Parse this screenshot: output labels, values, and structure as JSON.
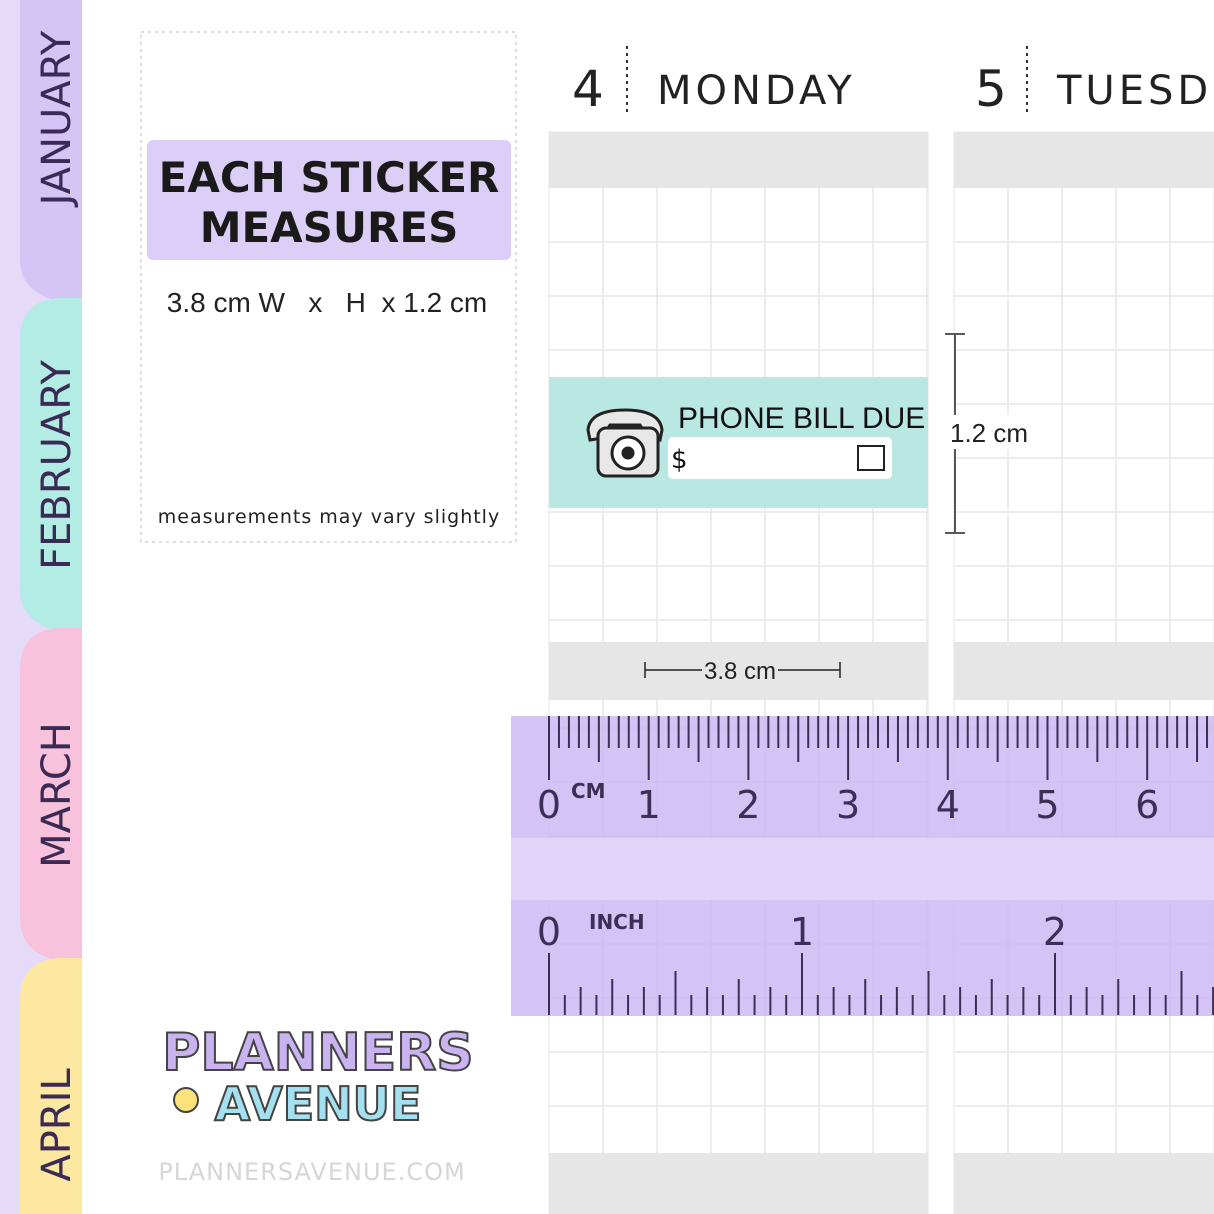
{
  "tabs": [
    "JANUARY",
    "FEBRUARY",
    "MARCH",
    "APRIL"
  ],
  "info": {
    "title_line1": "EACH STICKER",
    "title_line2": "MEASURES",
    "size": "3.8 cm W   x   H  x 1.2 cm",
    "note": "measurements may vary slightly"
  },
  "days": [
    {
      "number": "4",
      "name": "MONDAY"
    },
    {
      "number": "5",
      "name": "TUESD"
    }
  ],
  "sticker": {
    "title": "PHONE BILL DUE",
    "currency": "$"
  },
  "dimensions": {
    "height": "1.2 cm",
    "width": "3.8 cm"
  },
  "ruler": {
    "cm_unit": "CM",
    "cm_labels": [
      "0",
      "1",
      "2",
      "3",
      "4",
      "5",
      "6"
    ],
    "inch_unit": "INCH",
    "inch_labels": [
      "0",
      "1",
      "2"
    ]
  },
  "logo": {
    "line1": "PLANNERS",
    "line2": "AVENUE",
    "url": "PLANNERSAVENUE.COM"
  }
}
